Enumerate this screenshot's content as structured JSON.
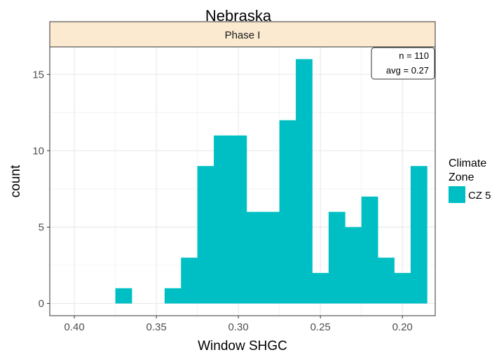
{
  "chart_data": {
    "type": "bar",
    "title": "Nebraska",
    "facet_label": "Phase I",
    "xlabel": "Window SHGC",
    "ylabel": "count",
    "x_reversed": true,
    "xlim": [
      0.415,
      0.18
    ],
    "ylim": [
      -0.8,
      16.8
    ],
    "x_ticks": [
      0.4,
      0.35,
      0.3,
      0.25,
      0.2
    ],
    "x_tick_labels": [
      "0.40",
      "0.35",
      "0.30",
      "0.25",
      "0.20"
    ],
    "y_ticks": [
      0,
      5,
      10,
      15
    ],
    "y_tick_labels": [
      "0",
      "5",
      "10",
      "15"
    ],
    "grid": true,
    "bin_width": 0.01,
    "bins": [
      {
        "x": 0.37,
        "count": 1
      },
      {
        "x": 0.34,
        "count": 1
      },
      {
        "x": 0.33,
        "count": 3
      },
      {
        "x": 0.32,
        "count": 9
      },
      {
        "x": 0.31,
        "count": 11
      },
      {
        "x": 0.3,
        "count": 11
      },
      {
        "x": 0.29,
        "count": 6
      },
      {
        "x": 0.28,
        "count": 6
      },
      {
        "x": 0.27,
        "count": 12
      },
      {
        "x": 0.26,
        "count": 16
      },
      {
        "x": 0.25,
        "count": 2
      },
      {
        "x": 0.24,
        "count": 6
      },
      {
        "x": 0.23,
        "count": 5
      },
      {
        "x": 0.22,
        "count": 7
      },
      {
        "x": 0.21,
        "count": 3
      },
      {
        "x": 0.2,
        "count": 2
      },
      {
        "x": 0.19,
        "count": 9
      }
    ],
    "annotation": {
      "lines": [
        "n = 110",
        "avg = 0.27"
      ],
      "placement": "top-right"
    },
    "legend": {
      "title_lines": [
        "Climate",
        "Zone"
      ],
      "entries": [
        {
          "label": "CZ 5",
          "color": "#00BFC4"
        }
      ],
      "placement": "right"
    },
    "colors": {
      "bar": "#00BFC4",
      "strip_fill": "#FBE9D0",
      "grid": "#EBEBEB",
      "panel_border": "#333333"
    }
  }
}
